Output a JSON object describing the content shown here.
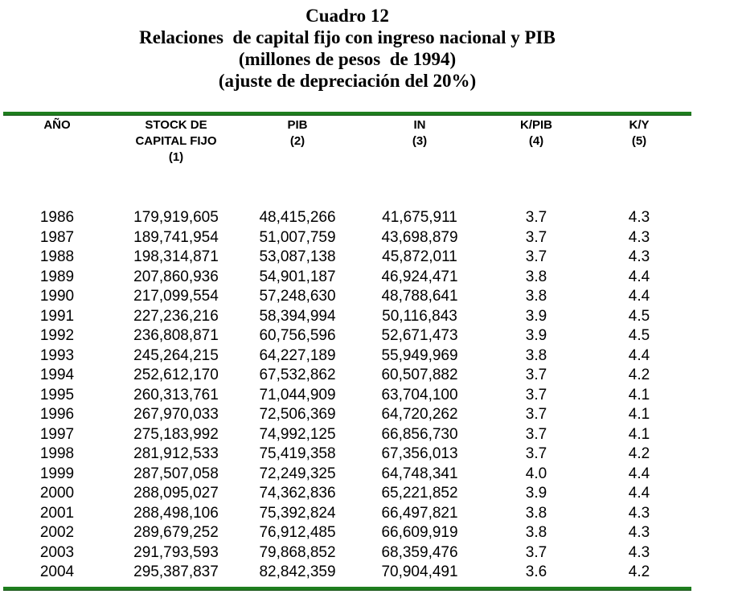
{
  "title": {
    "line1": "Cuadro 12",
    "line2": "Relaciones  de capital fijo con ingreso nacional y PIB",
    "line3": "(millones de pesos  de 1994)",
    "line4": "(ajuste de depreciación del 20%)"
  },
  "colors": {
    "rule_green": "#1e7e1e",
    "text": "#000000",
    "background": "#ffffff"
  },
  "table": {
    "columns": [
      {
        "id": "ano",
        "lines": [
          "AÑO"
        ]
      },
      {
        "id": "stock-capital-fijo",
        "lines": [
          "STOCK DE",
          "CAPITAL FIJO",
          "(1)"
        ]
      },
      {
        "id": "pib",
        "lines": [
          "PIB",
          "(2)"
        ]
      },
      {
        "id": "in",
        "lines": [
          "IN",
          "(3)"
        ]
      },
      {
        "id": "k-pib",
        "lines": [
          "K/PIB",
          "(4)"
        ]
      },
      {
        "id": "k-y",
        "lines": [
          "K/Y",
          "(5)"
        ]
      }
    ],
    "rows": [
      [
        "1986",
        "179,919,605",
        "48,415,266",
        "41,675,911",
        "3.7",
        "4.3"
      ],
      [
        "1987",
        "189,741,954",
        "51,007,759",
        "43,698,879",
        "3.7",
        "4.3"
      ],
      [
        "1988",
        "198,314,871",
        "53,087,138",
        "45,872,011",
        "3.7",
        "4.3"
      ],
      [
        "1989",
        "207,860,936",
        "54,901,187",
        "46,924,471",
        "3.8",
        "4.4"
      ],
      [
        "1990",
        "217,099,554",
        "57,248,630",
        "48,788,641",
        "3.8",
        "4.4"
      ],
      [
        "1991",
        "227,236,216",
        "58,394,994",
        "50,116,843",
        "3.9",
        "4.5"
      ],
      [
        "1992",
        "236,808,871",
        "60,756,596",
        "52,671,473",
        "3.9",
        "4.5"
      ],
      [
        "1993",
        "245,264,215",
        "64,227,189",
        "55,949,969",
        "3.8",
        "4.4"
      ],
      [
        "1994",
        "252,612,170",
        "67,532,862",
        "60,507,882",
        "3.7",
        "4.2"
      ],
      [
        "1995",
        "260,313,761",
        "71,044,909",
        "63,704,100",
        "3.7",
        "4.1"
      ],
      [
        "1996",
        "267,970,033",
        "72,506,369",
        "64,720,262",
        "3.7",
        "4.1"
      ],
      [
        "1997",
        "275,183,992",
        "74,992,125",
        "66,856,730",
        "3.7",
        "4.1"
      ],
      [
        "1998",
        "281,912,533",
        "75,419,358",
        "67,356,013",
        "3.7",
        "4.2"
      ],
      [
        "1999",
        "287,507,058",
        "72,249,325",
        "64,748,341",
        "4.0",
        "4.4"
      ],
      [
        "2000",
        "288,095,027",
        "74,362,836",
        "65,221,852",
        "3.9",
        "4.4"
      ],
      [
        "2001",
        "288,498,106",
        "75,392,824",
        "66,497,821",
        "3.8",
        "4.3"
      ],
      [
        "2002",
        "289,679,252",
        "76,912,485",
        "66,609,919",
        "3.8",
        "4.3"
      ],
      [
        "2003",
        "291,793,593",
        "79,868,852",
        "68,359,476",
        "3.7",
        "4.3"
      ],
      [
        "2004",
        "295,387,837",
        "82,842,359",
        "70,904,491",
        "3.6",
        "4.2"
      ]
    ]
  }
}
